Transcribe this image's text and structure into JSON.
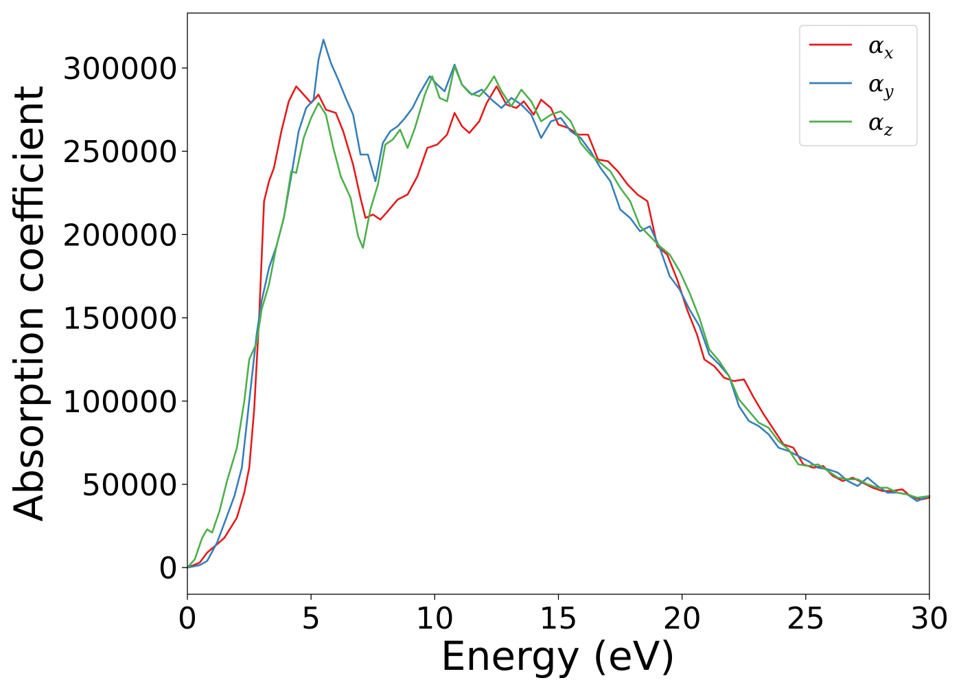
{
  "chart_data": {
    "type": "line",
    "xlabel": "Energy (eV)",
    "ylabel": "Absorption coefficient",
    "xlim": [
      0,
      30
    ],
    "ylim": [
      -16000,
      333000
    ],
    "xticks": [
      "0",
      "5",
      "10",
      "15",
      "20",
      "25",
      "30"
    ],
    "yticks": [
      "0",
      "50000",
      "100000",
      "150000",
      "200000",
      "250000",
      "300000"
    ],
    "grid": false,
    "legend_position": "top-right",
    "series": [
      {
        "name": "α",
        "sub": "x",
        "color": "#e41a1c",
        "points": [
          [
            0,
            0
          ],
          [
            0.5,
            3000
          ],
          [
            0.8,
            9000
          ],
          [
            1.2,
            14000
          ],
          [
            1.5,
            18000
          ],
          [
            2.0,
            30000
          ],
          [
            2.3,
            45000
          ],
          [
            2.5,
            60000
          ],
          [
            2.7,
            95000
          ],
          [
            2.9,
            150000
          ],
          [
            3.1,
            220000
          ],
          [
            3.3,
            232000
          ],
          [
            3.5,
            240000
          ],
          [
            3.8,
            262000
          ],
          [
            4.1,
            280000
          ],
          [
            4.4,
            289000
          ],
          [
            4.7,
            284000
          ],
          [
            5.0,
            279000
          ],
          [
            5.3,
            284000
          ],
          [
            5.6,
            275000
          ],
          [
            6.0,
            273000
          ],
          [
            6.3,
            262000
          ],
          [
            6.7,
            242000
          ],
          [
            7.0,
            222000
          ],
          [
            7.2,
            210000
          ],
          [
            7.5,
            212000
          ],
          [
            7.8,
            209000
          ],
          [
            8.1,
            214000
          ],
          [
            8.5,
            221000
          ],
          [
            8.9,
            224000
          ],
          [
            9.3,
            235000
          ],
          [
            9.7,
            252000
          ],
          [
            10.1,
            254000
          ],
          [
            10.5,
            260000
          ],
          [
            10.8,
            273000
          ],
          [
            11.1,
            265000
          ],
          [
            11.4,
            261000
          ],
          [
            11.8,
            268000
          ],
          [
            12.1,
            279000
          ],
          [
            12.5,
            289000
          ],
          [
            12.9,
            278000
          ],
          [
            13.3,
            276000
          ],
          [
            13.6,
            280000
          ],
          [
            14.0,
            272000
          ],
          [
            14.3,
            281000
          ],
          [
            14.7,
            276000
          ],
          [
            15.0,
            266000
          ],
          [
            15.4,
            264000
          ],
          [
            15.8,
            260000
          ],
          [
            16.2,
            260000
          ],
          [
            16.6,
            245000
          ],
          [
            17.0,
            244000
          ],
          [
            17.4,
            238000
          ],
          [
            17.8,
            230000
          ],
          [
            18.2,
            224000
          ],
          [
            18.6,
            220000
          ],
          [
            19.0,
            193000
          ],
          [
            19.4,
            188000
          ],
          [
            19.8,
            173000
          ],
          [
            20.2,
            155000
          ],
          [
            20.6,
            140000
          ],
          [
            20.9,
            125000
          ],
          [
            21.3,
            121000
          ],
          [
            21.7,
            114000
          ],
          [
            22.1,
            112000
          ],
          [
            22.5,
            113000
          ],
          [
            22.9,
            102000
          ],
          [
            23.3,
            92000
          ],
          [
            23.7,
            83000
          ],
          [
            24.1,
            74000
          ],
          [
            24.5,
            72000
          ],
          [
            24.9,
            62000
          ],
          [
            25.3,
            60000
          ],
          [
            25.7,
            61000
          ],
          [
            26.1,
            55000
          ],
          [
            26.5,
            52000
          ],
          [
            26.9,
            54000
          ],
          [
            27.3,
            51000
          ],
          [
            27.7,
            48000
          ],
          [
            28.1,
            46000
          ],
          [
            28.5,
            46000
          ],
          [
            28.9,
            47000
          ],
          [
            29.3,
            42000
          ],
          [
            29.7,
            41000
          ],
          [
            30.0,
            42000
          ]
        ]
      },
      {
        "name": "α",
        "sub": "y",
        "color": "#377eb8",
        "points": [
          [
            0,
            0
          ],
          [
            0.5,
            1500
          ],
          [
            0.8,
            4000
          ],
          [
            1.2,
            15000
          ],
          [
            1.5,
            27000
          ],
          [
            1.9,
            43000
          ],
          [
            2.2,
            60000
          ],
          [
            2.5,
            100000
          ],
          [
            2.8,
            140000
          ],
          [
            3.0,
            160000
          ],
          [
            3.3,
            180000
          ],
          [
            3.6,
            193000
          ],
          [
            3.9,
            210000
          ],
          [
            4.2,
            235000
          ],
          [
            4.5,
            262000
          ],
          [
            4.8,
            276000
          ],
          [
            5.1,
            281000
          ],
          [
            5.3,
            305000
          ],
          [
            5.5,
            317000
          ],
          [
            5.8,
            303000
          ],
          [
            6.1,
            293000
          ],
          [
            6.4,
            282000
          ],
          [
            6.7,
            272000
          ],
          [
            7.0,
            248000
          ],
          [
            7.3,
            248000
          ],
          [
            7.6,
            232000
          ],
          [
            7.9,
            255000
          ],
          [
            8.2,
            262000
          ],
          [
            8.5,
            265000
          ],
          [
            8.8,
            270000
          ],
          [
            9.1,
            276000
          ],
          [
            9.4,
            285000
          ],
          [
            9.8,
            295000
          ],
          [
            10.1,
            290000
          ],
          [
            10.4,
            286000
          ],
          [
            10.8,
            302000
          ],
          [
            11.1,
            290000
          ],
          [
            11.5,
            284000
          ],
          [
            11.9,
            287000
          ],
          [
            12.3,
            281000
          ],
          [
            12.7,
            276000
          ],
          [
            13.1,
            282000
          ],
          [
            13.5,
            278000
          ],
          [
            13.9,
            272000
          ],
          [
            14.3,
            258000
          ],
          [
            14.7,
            268000
          ],
          [
            15.1,
            270000
          ],
          [
            15.5,
            262000
          ],
          [
            15.9,
            258000
          ],
          [
            16.3,
            250000
          ],
          [
            16.7,
            240000
          ],
          [
            17.1,
            232000
          ],
          [
            17.5,
            215000
          ],
          [
            17.9,
            210000
          ],
          [
            18.3,
            202000
          ],
          [
            18.7,
            205000
          ],
          [
            19.1,
            192000
          ],
          [
            19.5,
            175000
          ],
          [
            19.9,
            167000
          ],
          [
            20.3,
            155000
          ],
          [
            20.7,
            145000
          ],
          [
            21.1,
            128000
          ],
          [
            21.5,
            122000
          ],
          [
            21.9,
            115000
          ],
          [
            22.3,
            97000
          ],
          [
            22.7,
            88000
          ],
          [
            23.1,
            85000
          ],
          [
            23.5,
            80000
          ],
          [
            23.9,
            72000
          ],
          [
            24.3,
            70000
          ],
          [
            24.7,
            67000
          ],
          [
            25.1,
            64000
          ],
          [
            25.5,
            60000
          ],
          [
            25.9,
            59000
          ],
          [
            26.3,
            57000
          ],
          [
            26.7,
            52000
          ],
          [
            27.1,
            49000
          ],
          [
            27.5,
            54000
          ],
          [
            27.9,
            49000
          ],
          [
            28.3,
            45000
          ],
          [
            28.7,
            45000
          ],
          [
            29.1,
            44000
          ],
          [
            29.5,
            40000
          ],
          [
            30.0,
            43000
          ]
        ]
      },
      {
        "name": "α",
        "sub": "z",
        "color": "#4daf4a",
        "points": [
          [
            0,
            0
          ],
          [
            0.3,
            5000
          ],
          [
            0.6,
            18000
          ],
          [
            0.8,
            23000
          ],
          [
            1.0,
            21000
          ],
          [
            1.3,
            34000
          ],
          [
            1.6,
            52000
          ],
          [
            2.0,
            72000
          ],
          [
            2.3,
            100000
          ],
          [
            2.5,
            125000
          ],
          [
            2.8,
            135000
          ],
          [
            3.0,
            155000
          ],
          [
            3.3,
            170000
          ],
          [
            3.6,
            193000
          ],
          [
            3.9,
            210000
          ],
          [
            4.2,
            238000
          ],
          [
            4.4,
            237000
          ],
          [
            4.7,
            258000
          ],
          [
            5.0,
            270000
          ],
          [
            5.3,
            279000
          ],
          [
            5.6,
            272000
          ],
          [
            5.9,
            252000
          ],
          [
            6.2,
            235000
          ],
          [
            6.6,
            222000
          ],
          [
            6.9,
            199000
          ],
          [
            7.1,
            192000
          ],
          [
            7.4,
            215000
          ],
          [
            7.7,
            230000
          ],
          [
            8.0,
            254000
          ],
          [
            8.3,
            257000
          ],
          [
            8.6,
            263000
          ],
          [
            8.9,
            252000
          ],
          [
            9.2,
            264000
          ],
          [
            9.6,
            284000
          ],
          [
            9.9,
            295000
          ],
          [
            10.2,
            282000
          ],
          [
            10.5,
            280000
          ],
          [
            10.8,
            301000
          ],
          [
            11.1,
            290000
          ],
          [
            11.4,
            285000
          ],
          [
            11.8,
            283000
          ],
          [
            12.1,
            288000
          ],
          [
            12.4,
            295000
          ],
          [
            12.7,
            286000
          ],
          [
            13.1,
            277000
          ],
          [
            13.5,
            287000
          ],
          [
            13.9,
            280000
          ],
          [
            14.3,
            268000
          ],
          [
            14.7,
            272000
          ],
          [
            15.1,
            274000
          ],
          [
            15.5,
            268000
          ],
          [
            15.9,
            255000
          ],
          [
            16.3,
            248000
          ],
          [
            16.7,
            243000
          ],
          [
            17.1,
            238000
          ],
          [
            17.5,
            228000
          ],
          [
            17.9,
            220000
          ],
          [
            18.3,
            205000
          ],
          [
            18.7,
            199000
          ],
          [
            19.1,
            193000
          ],
          [
            19.5,
            188000
          ],
          [
            19.9,
            178000
          ],
          [
            20.3,
            165000
          ],
          [
            20.7,
            150000
          ],
          [
            21.1,
            131000
          ],
          [
            21.5,
            124000
          ],
          [
            21.9,
            115000
          ],
          [
            22.3,
            101000
          ],
          [
            22.7,
            94000
          ],
          [
            23.1,
            87000
          ],
          [
            23.5,
            84000
          ],
          [
            23.9,
            76000
          ],
          [
            24.3,
            71000
          ],
          [
            24.7,
            62000
          ],
          [
            25.1,
            61000
          ],
          [
            25.5,
            62000
          ],
          [
            25.9,
            58000
          ],
          [
            26.3,
            54000
          ],
          [
            26.7,
            53000
          ],
          [
            27.1,
            53000
          ],
          [
            27.5,
            50000
          ],
          [
            27.9,
            48000
          ],
          [
            28.3,
            48000
          ],
          [
            28.7,
            45000
          ],
          [
            29.1,
            44000
          ],
          [
            29.5,
            42000
          ],
          [
            30.0,
            43000
          ]
        ]
      }
    ]
  }
}
